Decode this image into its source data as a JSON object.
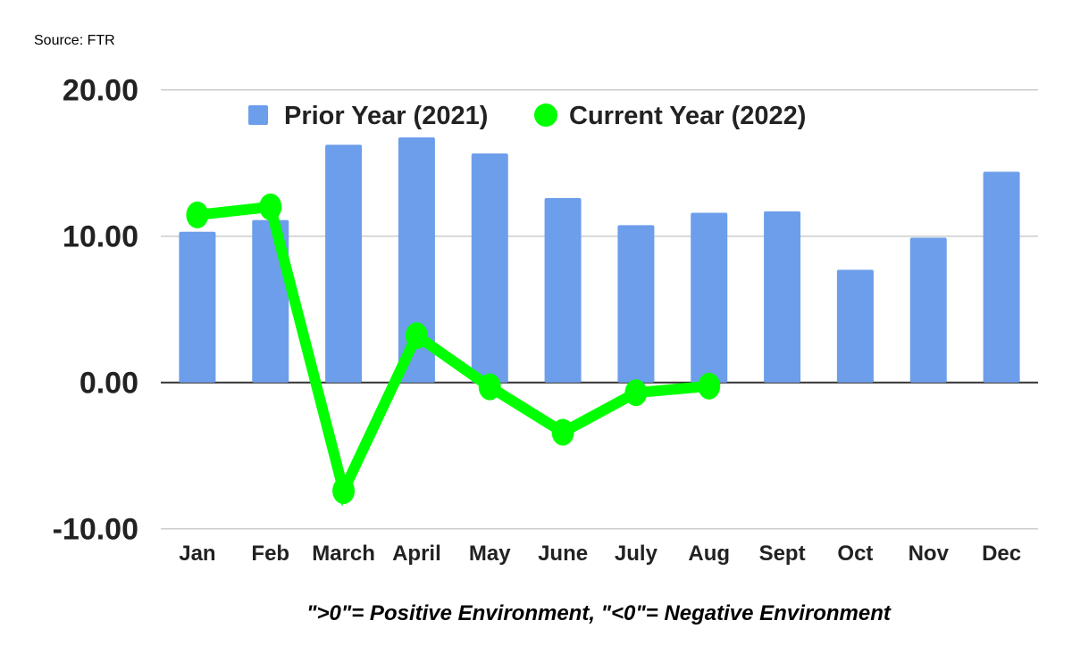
{
  "source": "Source: FTR",
  "footnote": "\">0\"= Positive Environment, \"<0\"= Negative Environment",
  "chart_data": {
    "type": "bar+line",
    "categories": [
      "Jan",
      "Feb",
      "March",
      "April",
      "May",
      "June",
      "July",
      "Aug",
      "Sept",
      "Oct",
      "Nov",
      "Dec"
    ],
    "series": [
      {
        "name": "Prior Year (2021)",
        "type": "bar",
        "color": "#6d9eeb",
        "values": [
          10.3,
          11.1,
          16.25,
          16.75,
          15.65,
          12.6,
          10.75,
          11.6,
          11.7,
          7.7,
          9.9,
          14.4
        ]
      },
      {
        "name": "Current Year (2022)",
        "type": "line",
        "color": "#00ff00",
        "values": [
          11.45,
          12.0,
          -7.4,
          3.2,
          -0.3,
          -3.4,
          -0.7,
          -0.25,
          null,
          null,
          null,
          null
        ]
      }
    ],
    "ylim": [
      -10,
      20
    ],
    "yticks": [
      "20.00",
      "10.00",
      "0.00",
      "-10.00"
    ],
    "ytick_values": [
      20,
      10,
      0,
      -10
    ],
    "grid": true,
    "legend": "top"
  }
}
